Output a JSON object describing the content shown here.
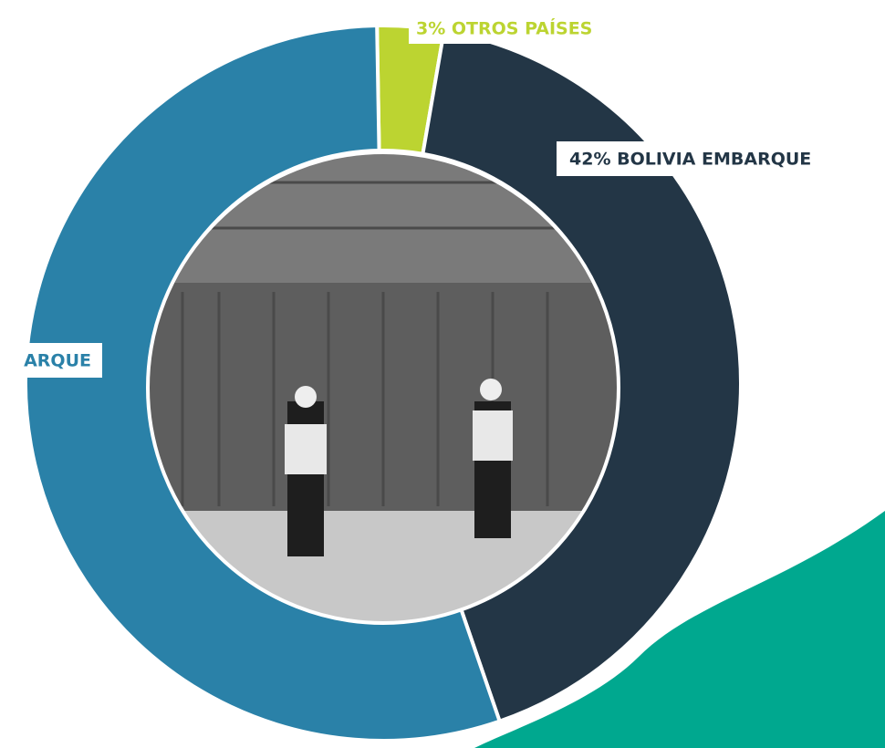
{
  "chart_data": {
    "type": "donut",
    "categories": [
      "3% OTROS PAÍSES",
      "42% BOLIVIA EMBARQUE",
      "ARQUE"
    ],
    "values": [
      3,
      42,
      55
    ],
    "colors": [
      "#bcd431",
      "#233646",
      "#2a81a8"
    ]
  }
}
